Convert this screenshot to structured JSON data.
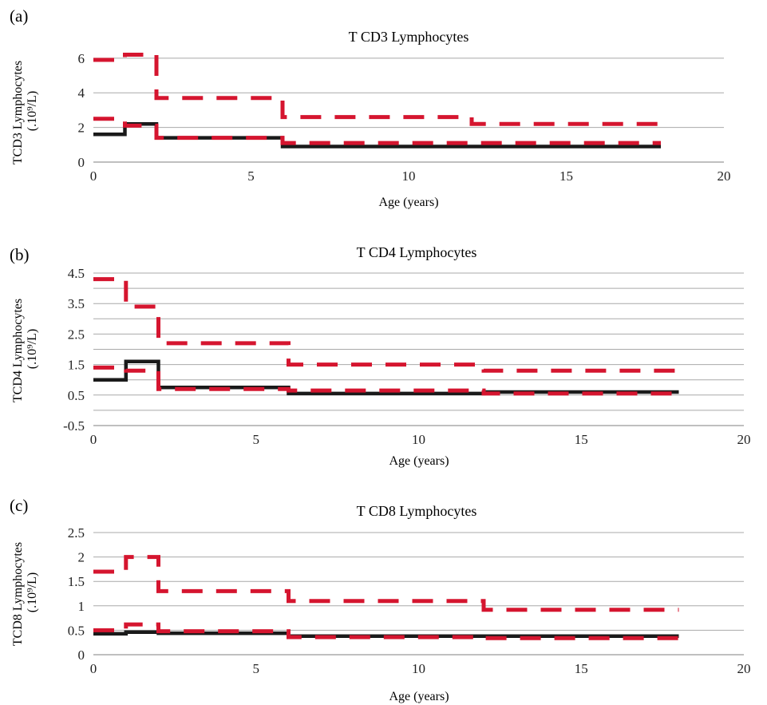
{
  "colors": {
    "mean_series": "#1a1a1a",
    "limit_series": "#d5152f",
    "grid": "#a9a9a9",
    "text": "#222222"
  },
  "chart_data": [
    {
      "panel": "(a)",
      "type": "line",
      "title": "T CD3 Lymphocytes",
      "xlabel": "Age (years)",
      "ylabel": [
        "TCD3 Lymphocytes",
        "(.10⁹/L)"
      ],
      "xlim": [
        0,
        20
      ],
      "ylim": [
        0,
        6.5
      ],
      "xticks": [
        0,
        5,
        10,
        15,
        20
      ],
      "xtick_labels": [
        "0",
        "5",
        "10",
        "15",
        "20"
      ],
      "yticks": [
        0,
        2,
        4,
        6
      ],
      "ytick_labels": [
        "0",
        "2",
        "4",
        "6"
      ],
      "gridlines": [
        0,
        2,
        4,
        6
      ],
      "grid": true,
      "legend": "none",
      "step": true,
      "series": [
        {
          "style": "solid",
          "color": "#1a1a1a",
          "x": [
            0,
            1,
            1,
            2,
            2,
            6,
            6,
            18
          ],
          "y": [
            1.6,
            1.6,
            2.2,
            2.2,
            1.4,
            1.4,
            0.9,
            0.9
          ]
        },
        {
          "style": "dashed",
          "color": "#d5152f",
          "x": [
            0,
            1,
            1,
            2,
            2,
            6,
            6,
            12,
            12,
            18
          ],
          "y": [
            5.9,
            5.9,
            6.2,
            6.2,
            3.7,
            3.7,
            2.6,
            2.6,
            2.2,
            2.2
          ]
        },
        {
          "style": "dashed",
          "color": "#d5152f",
          "x": [
            0,
            1,
            1,
            2,
            2,
            6,
            6,
            18
          ],
          "y": [
            2.5,
            2.5,
            2.1,
            2.1,
            1.4,
            1.4,
            1.1,
            1.1
          ]
        }
      ]
    },
    {
      "panel": "(b)",
      "type": "line",
      "title": "T CD4 Lymphocytes",
      "xlabel": "Age (years)",
      "ylabel": [
        "TCD4 Lymphocytes",
        "(.10⁹/L)"
      ],
      "xlim": [
        0,
        20
      ],
      "ylim": [
        -0.5,
        4.5
      ],
      "xticks": [
        0,
        5,
        10,
        15,
        20
      ],
      "xtick_labels": [
        "0",
        "5",
        "10",
        "15",
        "20"
      ],
      "yticks": [
        -0.5,
        0.5,
        1.5,
        2.5,
        3.5,
        4.5
      ],
      "ytick_labels": [
        "-0.5",
        "0.5",
        "1.5",
        "2.5",
        "3.5",
        "4.5"
      ],
      "gridlines": [
        -0.5,
        0,
        0.5,
        1,
        1.5,
        2,
        2.5,
        3,
        3.5,
        4,
        4.5
      ],
      "grid": true,
      "legend": "none",
      "step": true,
      "series": [
        {
          "style": "solid",
          "color": "#1a1a1a",
          "x": [
            0,
            1,
            1,
            2,
            2,
            6,
            6,
            12,
            12,
            18
          ],
          "y": [
            1.0,
            1.0,
            1.6,
            1.6,
            0.75,
            0.75,
            0.55,
            0.55,
            0.6,
            0.6
          ]
        },
        {
          "style": "dashed",
          "color": "#d5152f",
          "x": [
            0,
            1,
            1,
            2,
            2,
            6,
            6,
            12,
            12,
            18
          ],
          "y": [
            4.3,
            4.3,
            3.4,
            3.4,
            2.2,
            2.2,
            1.5,
            1.5,
            1.3,
            1.3
          ]
        },
        {
          "style": "dashed",
          "color": "#d5152f",
          "x": [
            0,
            1,
            1,
            2,
            2,
            6,
            6,
            12,
            12,
            18
          ],
          "y": [
            1.4,
            1.4,
            1.3,
            1.3,
            0.7,
            0.7,
            0.65,
            0.65,
            0.55,
            0.55
          ]
        }
      ]
    },
    {
      "panel": "(c)",
      "type": "line",
      "title": "T CD8 Lymphocytes",
      "xlabel": "Age (years)",
      "ylabel": [
        "TCD8 Lymphocytes",
        "(.10⁹/L)"
      ],
      "xlim": [
        0,
        20
      ],
      "ylim": [
        0,
        2.5
      ],
      "xticks": [
        0,
        5,
        10,
        15,
        20
      ],
      "xtick_labels": [
        "0",
        "5",
        "10",
        "15",
        "20"
      ],
      "yticks": [
        0,
        0.5,
        1,
        1.5,
        2,
        2.5
      ],
      "ytick_labels": [
        "0",
        "0.5",
        "1",
        "1.5",
        "2",
        "2.5"
      ],
      "gridlines": [
        0,
        0.5,
        1,
        1.5,
        2,
        2.5
      ],
      "grid": true,
      "legend": "none",
      "step": true,
      "series": [
        {
          "style": "solid",
          "color": "#1a1a1a",
          "x": [
            0,
            1,
            1,
            2,
            2,
            6,
            6,
            18
          ],
          "y": [
            0.43,
            0.43,
            0.46,
            0.46,
            0.44,
            0.44,
            0.38,
            0.38
          ]
        },
        {
          "style": "dashed",
          "color": "#d5152f",
          "x": [
            0,
            1,
            1,
            2,
            2,
            6,
            6,
            12,
            12,
            18
          ],
          "y": [
            1.7,
            1.7,
            2.0,
            2.0,
            1.3,
            1.3,
            1.1,
            1.1,
            0.92,
            0.92
          ]
        },
        {
          "style": "dashed",
          "color": "#d5152f",
          "x": [
            0,
            1,
            1,
            2,
            2,
            6,
            6,
            12,
            12,
            18
          ],
          "y": [
            0.5,
            0.5,
            0.62,
            0.62,
            0.48,
            0.48,
            0.36,
            0.36,
            0.34,
            0.34
          ]
        }
      ]
    }
  ]
}
